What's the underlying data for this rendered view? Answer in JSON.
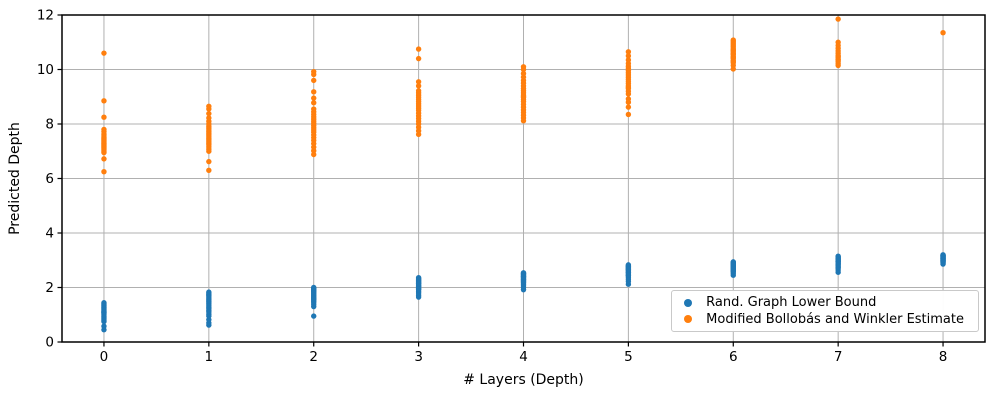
{
  "figure": {
    "background": "#ffffff"
  },
  "chart_data": {
    "type": "scatter",
    "title": "",
    "xlabel": "# Layers (Depth)",
    "ylabel": "Predicted Depth",
    "xlim": [
      -0.4,
      8.4
    ],
    "ylim": [
      0,
      12
    ],
    "xticks": [
      0,
      1,
      2,
      3,
      4,
      5,
      6,
      7,
      8
    ],
    "yticks": [
      0,
      2,
      4,
      6,
      8,
      10,
      12
    ],
    "grid": true,
    "grid_color": "#b0b0b0",
    "frame_color": "#000000",
    "legend": {
      "position": "lower right",
      "entries": [
        "Rand. Graph Lower Bound",
        "Modified Bollobás and Winkler Estimate"
      ]
    },
    "series": [
      {
        "name": "Rand. Graph Lower Bound",
        "color": "#1f77b4",
        "marker": "circle",
        "groups": [
          {
            "x": 0,
            "y": [
              0.45,
              0.58,
              0.75,
              0.8,
              0.85,
              0.9,
              0.95,
              1.0,
              1.05,
              1.08,
              1.12,
              1.16,
              1.2,
              1.24,
              1.28,
              1.32,
              1.36,
              1.4,
              1.44,
              1.1
            ]
          },
          {
            "x": 1,
            "y": [
              0.62,
              0.7,
              0.82,
              0.95,
              1.02,
              1.1,
              1.15,
              1.22,
              1.28,
              1.34,
              1.4,
              1.45,
              1.5,
              1.55,
              1.6,
              1.65,
              1.7,
              1.74,
              1.78,
              1.83
            ]
          },
          {
            "x": 2,
            "y": [
              0.95,
              1.3,
              1.38,
              1.45,
              1.5,
              1.55,
              1.6,
              1.64,
              1.68,
              1.72,
              1.76,
              1.8,
              1.84,
              1.87,
              1.9,
              1.93,
              1.96,
              1.98,
              2.0,
              1.58
            ]
          },
          {
            "x": 3,
            "y": [
              1.65,
              1.72,
              1.8,
              1.86,
              1.92,
              1.97,
              2.02,
              2.06,
              2.1,
              2.14,
              2.18,
              2.21,
              2.24,
              2.27,
              2.3,
              2.33,
              2.36,
              2.05,
              1.95,
              2.15
            ]
          },
          {
            "x": 4,
            "y": [
              1.92,
              2.0,
              2.06,
              2.12,
              2.17,
              2.22,
              2.26,
              2.3,
              2.33,
              2.36,
              2.39,
              2.42,
              2.45,
              2.48,
              2.5,
              2.52,
              2.54,
              2.28,
              2.2,
              2.4
            ]
          },
          {
            "x": 5,
            "y": [
              2.12,
              2.22,
              2.3,
              2.37,
              2.43,
              2.48,
              2.53,
              2.57,
              2.61,
              2.64,
              2.67,
              2.7,
              2.73,
              2.76,
              2.78,
              2.8,
              2.83,
              2.55,
              2.45,
              2.68
            ]
          },
          {
            "x": 6,
            "y": [
              2.45,
              2.52,
              2.58,
              2.63,
              2.67,
              2.71,
              2.74,
              2.77,
              2.8,
              2.82,
              2.84,
              2.86,
              2.88,
              2.9,
              2.92,
              2.94,
              2.75,
              2.68,
              2.85,
              2.6
            ]
          },
          {
            "x": 7,
            "y": [
              2.56,
              2.64,
              2.71,
              2.77,
              2.82,
              2.86,
              2.9,
              2.94,
              2.97,
              3.0,
              3.03,
              3.05,
              3.08,
              3.1,
              3.12,
              3.15,
              2.95,
              2.88,
              3.02,
              2.75
            ]
          },
          {
            "x": 8,
            "y": [
              2.86,
              2.92,
              2.97,
              3.01,
              3.05,
              3.08,
              3.11,
              3.14,
              3.16,
              3.18,
              3.2,
              3.0,
              2.95,
              3.1,
              3.06,
              3.13,
              2.9,
              3.04,
              3.17,
              2.99
            ]
          }
        ]
      },
      {
        "name": "Modified Bollobás and Winkler Estimate",
        "color": "#ff7f0e",
        "marker": "circle",
        "groups": [
          {
            "x": 0,
            "y": [
              6.25,
              6.72,
              6.95,
              7.0,
              7.05,
              7.1,
              7.14,
              7.18,
              7.22,
              7.26,
              7.3,
              7.34,
              7.38,
              7.42,
              7.46,
              7.5,
              7.56,
              7.63,
              7.72,
              7.8,
              8.25,
              8.85,
              10.6
            ]
          },
          {
            "x": 1,
            "y": [
              6.3,
              6.62,
              7.0,
              7.08,
              7.16,
              7.24,
              7.3,
              7.36,
              7.42,
              7.48,
              7.54,
              7.6,
              7.66,
              7.72,
              7.78,
              7.85,
              7.92,
              8.0,
              8.1,
              8.22,
              8.38,
              8.55,
              8.65
            ]
          },
          {
            "x": 2,
            "y": [
              6.88,
              7.02,
              7.15,
              7.28,
              7.4,
              7.5,
              7.6,
              7.7,
              7.78,
              7.86,
              7.94,
              8.02,
              8.1,
              8.18,
              8.26,
              8.35,
              8.45,
              8.55,
              8.78,
              8.95,
              9.18,
              9.6,
              9.82,
              9.92
            ]
          },
          {
            "x": 3,
            "y": [
              7.62,
              7.75,
              7.88,
              8.0,
              8.1,
              8.2,
              8.3,
              8.4,
              8.5,
              8.58,
              8.66,
              8.74,
              8.82,
              8.9,
              8.98,
              9.06,
              9.14,
              9.22,
              9.4,
              9.55,
              10.4,
              10.75
            ]
          },
          {
            "x": 4,
            "y": [
              8.12,
              8.22,
              8.32,
              8.42,
              8.52,
              8.62,
              8.72,
              8.82,
              8.9,
              8.98,
              9.06,
              9.14,
              9.22,
              9.3,
              9.4,
              9.5,
              9.6,
              9.72,
              9.85,
              10.0,
              10.1,
              9.0
            ]
          },
          {
            "x": 5,
            "y": [
              8.35,
              8.62,
              8.8,
              8.92,
              9.1,
              9.2,
              9.3,
              9.4,
              9.48,
              9.56,
              9.64,
              9.72,
              9.8,
              9.88,
              9.96,
              10.04,
              10.12,
              10.22,
              10.35,
              10.5,
              10.65,
              9.35
            ]
          },
          {
            "x": 6,
            "y": [
              10.02,
              10.15,
              10.25,
              10.33,
              10.4,
              10.47,
              10.54,
              10.6,
              10.66,
              10.72,
              10.78,
              10.84,
              10.9,
              10.96,
              11.02,
              11.08,
              10.45,
              10.57,
              10.7,
              10.3
            ]
          },
          {
            "x": 7,
            "y": [
              10.15,
              10.22,
              10.3,
              10.38,
              10.45,
              10.52,
              10.6,
              10.68,
              10.78,
              10.88,
              11.0,
              11.85,
              10.48,
              10.35
            ]
          },
          {
            "x": 8,
            "y": [
              11.35
            ]
          }
        ]
      }
    ]
  }
}
